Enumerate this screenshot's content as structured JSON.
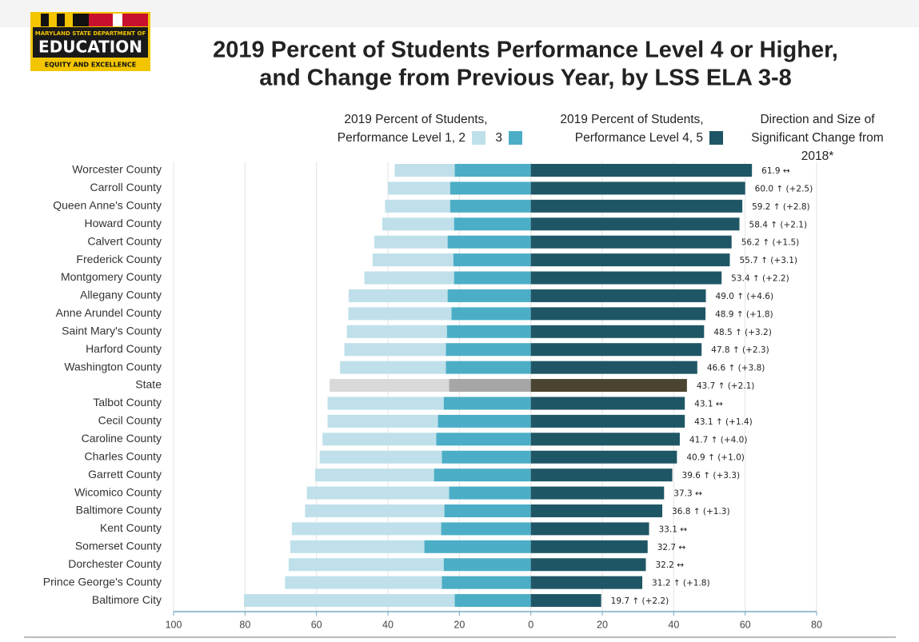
{
  "logo": {
    "top": "MARYLAND STATE DEPARTMENT OF",
    "main": "EDUCATION",
    "tagline": "EQUITY AND EXCELLENCE"
  },
  "chart_data": {
    "type": "diverging_bar",
    "title": "2019 Percent of Students Performance Level 4 or Higher,",
    "subtitle": "and Change from Previous Year, by LSS ELA 3-8",
    "legend_titles": [
      "2019 Percent of Students,",
      "2019 Percent of Students,"
    ],
    "change_header": "Direction and Size of Significant Change from 2018*",
    "categories": [
      "Worcester County",
      "Carroll County",
      "Queen Anne's County",
      "Howard County",
      "Calvert County",
      "Frederick County",
      "Montgomery County",
      "Allegany County",
      "Anne Arundel County",
      "Saint Mary's County",
      "Harford County",
      "Washington County",
      "State",
      "Talbot County",
      "Cecil County",
      "Caroline County",
      "Charles County",
      "Garrett County",
      "Wicomico County",
      "Baltimore County",
      "Kent County",
      "Somerset County",
      "Dorchester County",
      "Prince George's County",
      "Baltimore City"
    ],
    "series": [
      {
        "name": "Performance Level 1, 2",
        "color": "#bfe0ea",
        "side": "left",
        "values": [
          16.8,
          17.4,
          18.2,
          20.1,
          20.5,
          22.6,
          25.1,
          27.7,
          28.9,
          28.0,
          28.4,
          29.6,
          33.4,
          32.5,
          30.9,
          31.8,
          34.2,
          33.3,
          39.8,
          39.0,
          41.8,
          37.5,
          43.4,
          43.9,
          59.0
        ]
      },
      {
        "name": "3",
        "color": "#4baec6",
        "side": "left",
        "values": [
          21.3,
          22.6,
          22.6,
          21.5,
          23.3,
          21.7,
          21.5,
          23.3,
          22.2,
          23.5,
          23.8,
          23.8,
          22.9,
          24.4,
          26.0,
          26.5,
          24.9,
          27.1,
          22.9,
          24.2,
          25.1,
          29.8,
          24.4,
          24.9,
          21.3
        ]
      },
      {
        "name": "Performance Level 4, 5",
        "color": "#1f5665",
        "side": "right",
        "values": [
          61.9,
          60.0,
          59.2,
          58.4,
          56.2,
          55.7,
          53.4,
          49.0,
          48.9,
          48.5,
          47.8,
          46.6,
          43.7,
          43.1,
          43.1,
          41.7,
          40.9,
          39.6,
          37.3,
          36.8,
          33.1,
          32.7,
          32.2,
          31.2,
          19.7
        ],
        "value_labels": [
          "61.9 ↔",
          "60.0 ↑ (+2.5)",
          "59.2 ↑ (+2.8)",
          "58.4 ↑ (+2.1)",
          "56.2 ↑ (+1.5)",
          "55.7 ↑ (+3.1)",
          "53.4 ↑ (+2.2)",
          "49.0 ↑ (+4.6)",
          "48.9 ↑ (+1.8)",
          "48.5 ↑ (+3.2)",
          "47.8 ↑ (+2.3)",
          "46.6 ↑ (+3.8)",
          "43.7 ↑ (+2.1)",
          "43.1 ↔",
          "43.1 ↑ (+1.4)",
          "41.7 ↑ (+4.0)",
          "40.9 ↑ (+1.0)",
          "39.6 ↑ (+3.3)",
          "37.3 ↔",
          "36.8 ↑ (+1.3)",
          "33.1 ↔",
          "32.7 ↔",
          "32.2 ↔",
          "31.2 ↑ (+1.8)",
          "19.7 ↑ (+2.2)"
        ]
      }
    ],
    "highlight": {
      "category": "State",
      "colors": [
        "#d9d9d9",
        "#a6a6a6",
        "#4a4430"
      ]
    },
    "xlim": [
      -100,
      80
    ],
    "xticks": [
      {
        "value": -100,
        "label": "100"
      },
      {
        "value": -80,
        "label": "80"
      },
      {
        "value": -60,
        "label": "60"
      },
      {
        "value": -40,
        "label": "40"
      },
      {
        "value": -20,
        "label": "20"
      },
      0,
      20,
      40,
      60,
      80
    ],
    "grid": true
  }
}
